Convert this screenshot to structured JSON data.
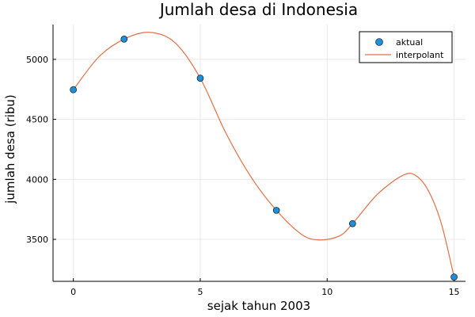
{
  "chart_data": {
    "type": "line",
    "title": "Jumlah desa di Indonesia",
    "xlabel": "sejak tahun 2003",
    "ylabel": "jumlah desa (ribu)",
    "xlim": [
      -0.8,
      15.45
    ],
    "ylim": [
      3150,
      5290
    ],
    "xticks": [
      0,
      5,
      10,
      15
    ],
    "yticks": [
      3500,
      4000,
      4500,
      5000
    ],
    "grid": true,
    "legend_position": "top-right",
    "colors": {
      "points": "#1f8fd8",
      "line": "#e26f46"
    },
    "series": [
      {
        "name": "aktual",
        "kind": "scatter",
        "x": [
          0,
          2,
          5,
          8,
          11,
          15
        ],
        "y": [
          4747,
          5169,
          4843,
          3742,
          3631,
          3186
        ]
      },
      {
        "name": "interpolant",
        "kind": "line",
        "x": [
          0,
          1,
          2,
          3,
          4,
          5,
          6,
          7,
          8,
          9,
          9.7,
          10.5,
          11,
          12,
          13,
          13.5,
          14,
          14.5,
          15
        ],
        "y": [
          4747,
          5020,
          5169,
          5225,
          5140,
          4843,
          4390,
          4020,
          3742,
          3540,
          3495,
          3530,
          3631,
          3880,
          4035,
          4030,
          3900,
          3630,
          3186
        ]
      }
    ]
  }
}
